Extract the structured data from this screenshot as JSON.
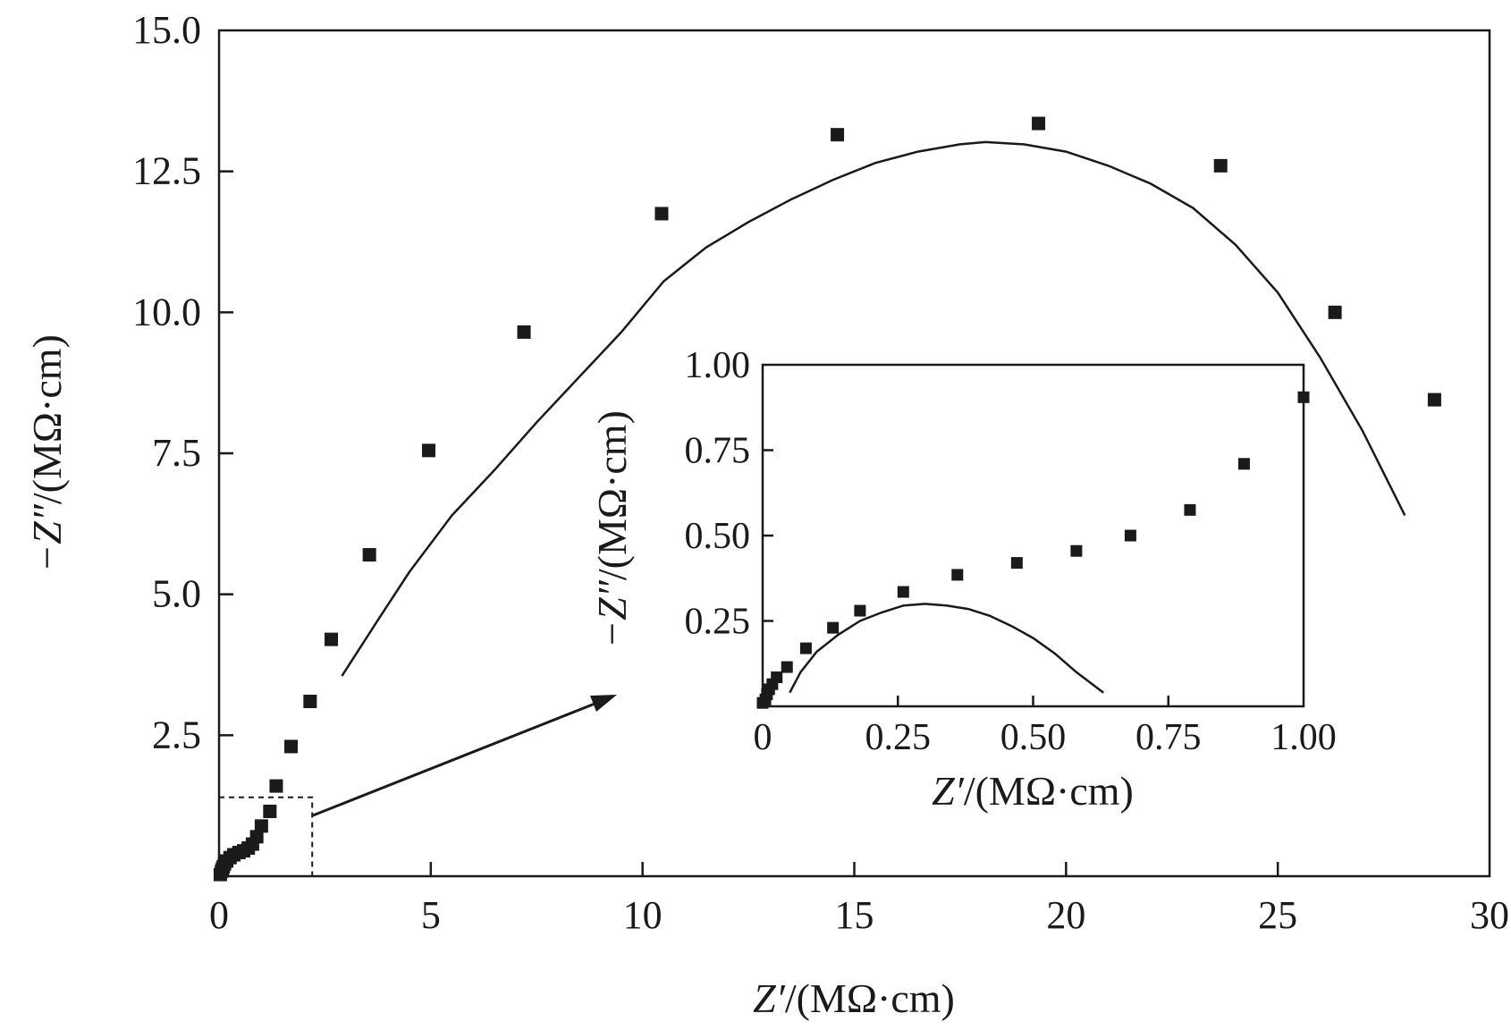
{
  "chart_data": [
    {
      "type": "scatter",
      "xlabel_italic": "Z′",
      "xlabel_unit": "/(MΩ·cm)",
      "ylabel_italic": "−Z″",
      "ylabel_unit": "/(MΩ·cm)",
      "xlim": [
        0,
        30
      ],
      "ylim": [
        0,
        15
      ],
      "x_ticks": [
        "0",
        "5",
        "10",
        "15",
        "20",
        "25",
        "30"
      ],
      "y_ticks": [
        "2.5",
        "5.0",
        "7.5",
        "10.0",
        "12.5",
        "15.0"
      ],
      "x_tick_values": [
        0,
        5,
        10,
        15,
        20,
        25,
        30
      ],
      "y_tick_values": [
        2.5,
        5.0,
        7.5,
        10.0,
        12.5,
        15.0
      ],
      "series": [
        {
          "kind": "measured",
          "marker": "square",
          "points": [
            [
              0.03,
              0.03
            ],
            [
              0.06,
              0.09
            ],
            [
              0.08,
              0.13
            ],
            [
              0.1,
              0.17
            ],
            [
              0.13,
              0.22
            ],
            [
              0.18,
              0.27
            ],
            [
              0.26,
              0.33
            ],
            [
              0.35,
              0.38
            ],
            [
              0.47,
              0.42
            ],
            [
              0.58,
              0.45
            ],
            [
              0.69,
              0.5
            ],
            [
              0.79,
              0.57
            ],
            [
              0.89,
              0.7
            ],
            [
              1.0,
              0.89
            ],
            [
              1.2,
              1.15
            ],
            [
              1.35,
              1.6
            ],
            [
              1.7,
              2.3
            ],
            [
              2.15,
              3.1
            ],
            [
              2.65,
              4.2
            ],
            [
              3.55,
              5.7
            ],
            [
              4.95,
              7.55
            ],
            [
              7.2,
              9.65
            ],
            [
              10.45,
              11.75
            ],
            [
              14.6,
              13.15
            ],
            [
              19.35,
              13.35
            ],
            [
              23.65,
              12.6
            ],
            [
              26.35,
              10.0
            ],
            [
              28.7,
              8.45
            ]
          ]
        },
        {
          "kind": "fit",
          "style": "line",
          "points": [
            [
              2.9,
              3.55
            ],
            [
              3.8,
              4.6
            ],
            [
              4.5,
              5.4
            ],
            [
              5.5,
              6.4
            ],
            [
              6.5,
              7.2
            ],
            [
              7.5,
              8.05
            ],
            [
              8.5,
              8.85
            ],
            [
              9.5,
              9.65
            ],
            [
              10.5,
              10.55
            ],
            [
              11.5,
              11.15
            ],
            [
              12.5,
              11.6
            ],
            [
              13.5,
              12.0
            ],
            [
              14.5,
              12.35
            ],
            [
              15.5,
              12.65
            ],
            [
              16.5,
              12.85
            ],
            [
              17.5,
              12.98
            ],
            [
              18.1,
              13.02
            ],
            [
              19,
              12.98
            ],
            [
              20,
              12.85
            ],
            [
              21,
              12.6
            ],
            [
              22,
              12.28
            ],
            [
              23,
              11.85
            ],
            [
              24,
              11.2
            ],
            [
              25,
              10.35
            ],
            [
              26,
              9.2
            ],
            [
              27,
              7.9
            ],
            [
              28,
              6.4
            ]
          ]
        }
      ],
      "zoom_box": {
        "x": [
          0,
          2.2
        ],
        "y": [
          0,
          1.4
        ]
      }
    },
    {
      "type": "scatter",
      "role": "inset",
      "xlabel_italic": "Z′",
      "xlabel_unit": "/(MΩ·cm)",
      "ylabel_italic": "−Z″",
      "ylabel_unit": "/(MΩ·cm)",
      "xlim": [
        0,
        1.0
      ],
      "ylim": [
        0,
        1.0
      ],
      "x_ticks": [
        "0",
        "0.25",
        "0.50",
        "0.75",
        "1.00"
      ],
      "y_ticks": [
        "0.25",
        "0.50",
        "0.75",
        "1.00"
      ],
      "x_tick_values": [
        0,
        0.25,
        0.5,
        0.75,
        1.0
      ],
      "y_tick_values": [
        0.25,
        0.5,
        0.75,
        1.0
      ],
      "series": [
        {
          "kind": "measured",
          "marker": "square",
          "points": [
            [
              0.0,
              0.01
            ],
            [
              0.005,
              0.02
            ],
            [
              0.008,
              0.035
            ],
            [
              0.012,
              0.05
            ],
            [
              0.018,
              0.065
            ],
            [
              0.026,
              0.085
            ],
            [
              0.045,
              0.115
            ],
            [
              0.08,
              0.17
            ],
            [
              0.13,
              0.23
            ],
            [
              0.18,
              0.28
            ],
            [
              0.26,
              0.335
            ],
            [
              0.36,
              0.385
            ],
            [
              0.47,
              0.42
            ],
            [
              0.58,
              0.455
            ],
            [
              0.68,
              0.5
            ],
            [
              0.79,
              0.575
            ],
            [
              0.89,
              0.71
            ],
            [
              1.0,
              0.905
            ]
          ]
        },
        {
          "kind": "fit",
          "style": "line",
          "points": [
            [
              0.05,
              0.04
            ],
            [
              0.07,
              0.1
            ],
            [
              0.1,
              0.16
            ],
            [
              0.14,
              0.21
            ],
            [
              0.18,
              0.25
            ],
            [
              0.22,
              0.275
            ],
            [
              0.26,
              0.295
            ],
            [
              0.3,
              0.3
            ],
            [
              0.34,
              0.295
            ],
            [
              0.38,
              0.285
            ],
            [
              0.42,
              0.265
            ],
            [
              0.46,
              0.235
            ],
            [
              0.5,
              0.2
            ],
            [
              0.54,
              0.155
            ],
            [
              0.58,
              0.1
            ],
            [
              0.63,
              0.04
            ]
          ]
        }
      ]
    }
  ]
}
